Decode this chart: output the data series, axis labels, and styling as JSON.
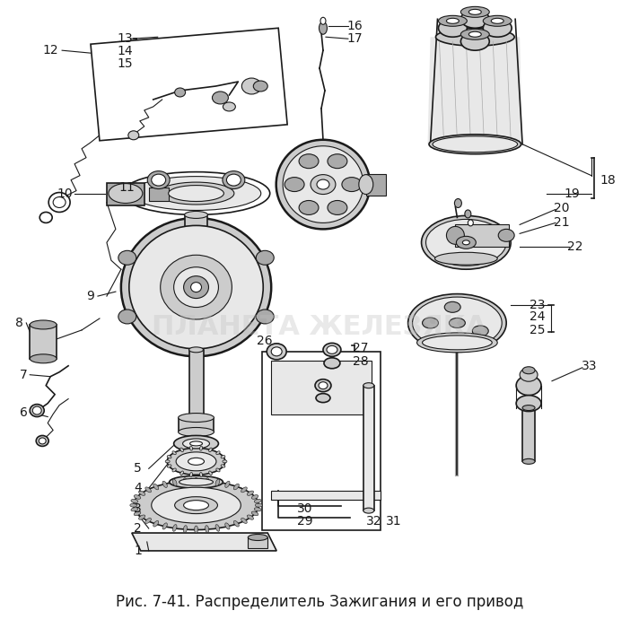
{
  "caption": "Рис. 7-41. Распределитель Зажигания и его привод",
  "caption_fontsize": 12,
  "background_color": "#ffffff",
  "fig_width": 7.12,
  "fig_height": 7.0,
  "dpi": 100,
  "watermark_text": "ПЛАНЕТА ЖЕЛЕЗЯКА",
  "watermark_color": "#c0c0c0",
  "watermark_fontsize": 22,
  "watermark_alpha": 0.35,
  "drawing_color": "#1a1a1a",
  "lw_thin": 0.8,
  "lw_med": 1.2,
  "lw_thick": 1.8
}
